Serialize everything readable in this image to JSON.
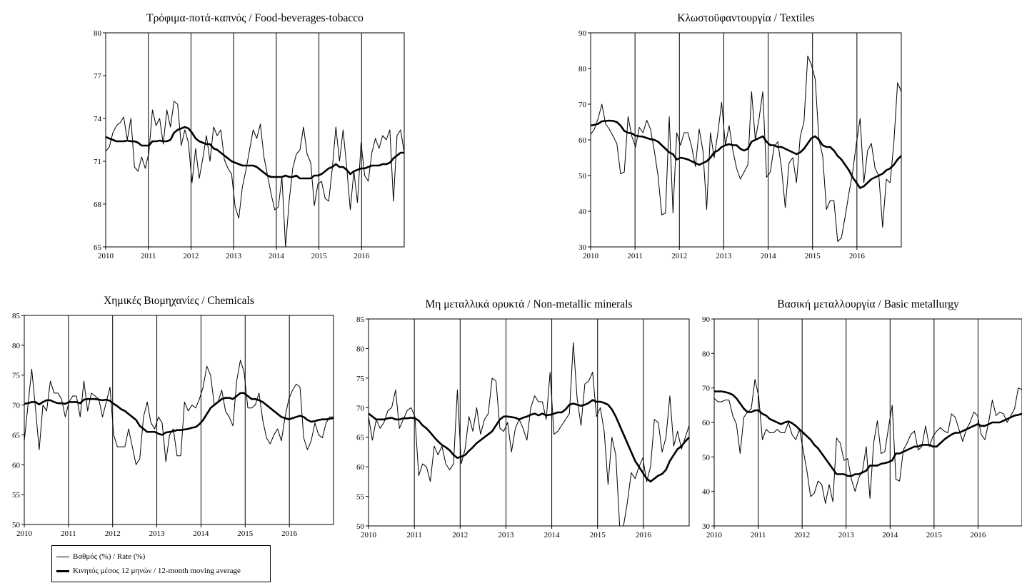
{
  "chart_data": [
    {
      "type": "line",
      "title": "Τρόφιμα-ποτά-καπνός / Food-beverages-tobacco",
      "ylim": [
        65,
        80
      ],
      "yticks": [
        65,
        68,
        71,
        74,
        77,
        80
      ],
      "xlim": [
        2010,
        2017
      ],
      "xticks": [
        2010,
        2011,
        2012,
        2013,
        2014,
        2015,
        2016
      ],
      "series": [
        {
          "name": "Βαθμός (%) / Rate (%)",
          "values": [
            71.7,
            72.0,
            73.0,
            73.5,
            73.7,
            74.1,
            72.5,
            74.0,
            70.6,
            70.3,
            71.3,
            70.5,
            71.6,
            74.6,
            73.5,
            74.0,
            72.2,
            74.6,
            73.4,
            75.2,
            75.0,
            72.1,
            73.2,
            72.3,
            69.5,
            71.9,
            69.8,
            71.2,
            72.8,
            71.0,
            73.4,
            72.8,
            73.2,
            71.1,
            70.5,
            70.1,
            67.8,
            67.0,
            69.2,
            70.4,
            71.8,
            73.2,
            72.6,
            73.6,
            71.3,
            70.0,
            68.7,
            67.6,
            67.8,
            69.9,
            65.0,
            68.2,
            70.5,
            71.5,
            71.8,
            73.4,
            71.5,
            70.9,
            67.9,
            69.4,
            69.6,
            68.4,
            68.2,
            70.5,
            73.4,
            71.0,
            73.2,
            70.6,
            67.6,
            70.3,
            68.1,
            72.3,
            70.0,
            69.6,
            71.6,
            72.6,
            71.9,
            72.8,
            72.5,
            73.2,
            68.2,
            72.8,
            73.2,
            71.6
          ]
        },
        {
          "name": "Κινητός μέσος 12 μηνών / 12-month moving average",
          "values": [
            72.7,
            72.6,
            72.5,
            72.4,
            72.4,
            72.4,
            72.45,
            72.4,
            72.4,
            72.3,
            72.1,
            72.1,
            72.1,
            72.4,
            72.4,
            72.45,
            72.4,
            72.4,
            72.5,
            73.0,
            73.2,
            73.3,
            73.4,
            73.3,
            73.0,
            72.6,
            72.4,
            72.3,
            72.2,
            72.2,
            71.9,
            71.8,
            71.6,
            71.4,
            71.2,
            71.0,
            70.9,
            70.8,
            70.7,
            70.7,
            70.7,
            70.7,
            70.6,
            70.4,
            70.2,
            70.0,
            69.9,
            69.9,
            69.9,
            69.9,
            70.0,
            69.9,
            69.9,
            70.0,
            69.8,
            69.8,
            69.8,
            69.8,
            70.0,
            70.0,
            70.1,
            70.3,
            70.5,
            70.6,
            70.8,
            70.6,
            70.6,
            70.4,
            70.1,
            70.3,
            70.4,
            70.5,
            70.5,
            70.6,
            70.7,
            70.7,
            70.7,
            70.8,
            70.8,
            70.9,
            71.2,
            71.4,
            71.6,
            71.6
          ]
        }
      ]
    },
    {
      "type": "line",
      "title": "Κλωστοϋφαντουργία / Textiles",
      "ylim": [
        30,
        90
      ],
      "yticks": [
        30,
        40,
        50,
        60,
        70,
        80,
        90
      ],
      "xlim": [
        2010,
        2017
      ],
      "xticks": [
        2010,
        2011,
        2012,
        2013,
        2014,
        2015,
        2016
      ],
      "series": [
        {
          "name": "Βαθμός (%) / Rate (%)",
          "values": [
            61.5,
            63.0,
            66.0,
            70.0,
            64.5,
            63.0,
            61.0,
            59.0,
            50.5,
            51.0,
            66.5,
            61.0,
            58.0,
            63.5,
            62.0,
            65.5,
            63.0,
            57.0,
            50.0,
            39.0,
            39.5,
            66.5,
            39.5,
            62.0,
            58.5,
            62.0,
            62.0,
            58.0,
            52.5,
            63.0,
            57.0,
            40.5,
            62.0,
            55.0,
            62.0,
            70.5,
            58.5,
            64.0,
            57.0,
            52.0,
            49.0,
            51.0,
            53.0,
            73.5,
            60.0,
            66.0,
            73.5,
            49.5,
            51.0,
            58.0,
            59.5,
            52.0,
            41.0,
            53.5,
            55.0,
            48.0,
            61.0,
            65.0,
            83.5,
            81.0,
            77.0,
            60.0,
            55.5,
            40.5,
            43.0,
            43.0,
            31.5,
            32.5,
            38.5,
            45.0,
            51.0,
            59.0,
            66.0,
            48.0,
            57.0,
            59.0,
            52.0,
            50.0,
            35.5,
            49.0,
            48.0,
            59.0,
            76.0,
            73.5
          ]
        },
        {
          "name": "Κινητός μέσος 12 μηνών / 12-month moving average",
          "values": [
            64.0,
            64.2,
            64.5,
            65.2,
            65.3,
            65.4,
            65.3,
            65.0,
            64.0,
            62.5,
            62.0,
            61.8,
            61.2,
            61.0,
            60.9,
            60.5,
            60.2,
            60.0,
            59.5,
            58.5,
            57.5,
            56.5,
            56.0,
            54.5,
            55.0,
            54.8,
            54.5,
            54.0,
            53.5,
            53.0,
            53.5,
            54.0,
            55.0,
            56.5,
            57.0,
            58.0,
            58.5,
            58.8,
            58.5,
            58.5,
            57.5,
            57.0,
            57.5,
            59.5,
            60.0,
            60.5,
            61.0,
            59.5,
            58.5,
            58.5,
            58.0,
            58.0,
            57.5,
            57.0,
            56.5,
            56.0,
            56.5,
            57.5,
            59.0,
            60.5,
            61.0,
            60.0,
            58.5,
            58.0,
            58.0,
            57.0,
            55.5,
            54.5,
            53.0,
            51.5,
            49.5,
            48.0,
            46.5,
            47.0,
            48.0,
            49.0,
            49.5,
            50.0,
            50.5,
            51.5,
            52.0,
            53.0,
            54.5,
            55.5
          ]
        }
      ]
    },
    {
      "type": "line",
      "title": "Χημικές Βιομηχανίες / Chemicals",
      "ylim": [
        50,
        85
      ],
      "yticks": [
        50,
        55,
        60,
        65,
        70,
        75,
        80,
        85
      ],
      "xlim": [
        2010,
        2017
      ],
      "xticks": [
        2010,
        2011,
        2012,
        2013,
        2014,
        2015,
        2016
      ],
      "series": [
        {
          "name": "Βαθμός (%) / Rate (%)",
          "values": [
            64.0,
            70.0,
            76.0,
            69.5,
            62.5,
            70.0,
            69.0,
            74.0,
            72.0,
            72.0,
            71.0,
            68.0,
            70.5,
            71.5,
            71.5,
            68.0,
            74.0,
            69.0,
            72.0,
            71.5,
            71.0,
            68.0,
            70.5,
            73.0,
            65.0,
            63.0,
            63.0,
            63.0,
            66.0,
            63.0,
            60.0,
            61.0,
            68.0,
            70.5,
            67.0,
            66.0,
            68.0,
            67.0,
            60.5,
            65.0,
            66.0,
            61.5,
            61.5,
            70.5,
            69.0,
            70.0,
            69.5,
            71.0,
            73.0,
            76.5,
            75.0,
            70.0,
            70.5,
            72.5,
            69.0,
            68.0,
            66.5,
            74.0,
            77.5,
            75.5,
            69.5,
            69.5,
            70.0,
            72.0,
            67.5,
            64.5,
            63.5,
            65.0,
            66.0,
            64.0,
            68.0,
            71.0,
            72.5,
            73.5,
            73.0,
            64.5,
            62.5,
            64.0,
            67.0,
            65.0,
            64.5,
            67.0,
            68.0,
            68.0
          ]
        },
        {
          "name": "Κινητός μέσος 12 μηνών / 12-month moving average",
          "values": [
            70.2,
            70.3,
            70.5,
            70.5,
            70.1,
            70.5,
            70.8,
            70.8,
            70.5,
            70.3,
            70.3,
            70.2,
            70.5,
            70.5,
            70.5,
            70.3,
            70.9,
            71.0,
            71.0,
            71.0,
            70.9,
            70.8,
            70.9,
            70.7,
            70.2,
            69.8,
            69.3,
            69.0,
            68.5,
            68.0,
            67.5,
            66.5,
            66.0,
            65.5,
            65.5,
            65.5,
            65.2,
            65.0,
            65.4,
            65.5,
            65.6,
            65.8,
            65.8,
            65.9,
            66.0,
            66.2,
            66.3,
            66.8,
            67.5,
            68.5,
            69.5,
            70.0,
            70.5,
            71.0,
            71.2,
            71.2,
            71.0,
            71.5,
            72.0,
            72.0,
            71.5,
            71.0,
            71.0,
            70.8,
            70.5,
            70.0,
            69.5,
            69.0,
            68.5,
            68.0,
            67.8,
            67.6,
            67.8,
            68.0,
            68.2,
            68.0,
            67.5,
            67.2,
            67.3,
            67.5,
            67.6,
            67.6,
            67.7,
            67.8
          ]
        }
      ]
    },
    {
      "type": "line",
      "title": "Μη μεταλλικά ορυκτά / Non-metallic minerals",
      "ylim": [
        50,
        85
      ],
      "yticks": [
        50,
        55,
        60,
        65,
        70,
        75,
        80,
        85
      ],
      "xlim": [
        2010,
        2017
      ],
      "xticks": [
        2010,
        2011,
        2012,
        2013,
        2014,
        2015,
        2016
      ],
      "series": [
        {
          "name": "Βαθμός (%) / Rate (%)",
          "values": [
            68.5,
            64.5,
            68.0,
            66.5,
            67.5,
            69.5,
            70.0,
            73.0,
            66.5,
            68.0,
            69.5,
            70.0,
            68.5,
            58.5,
            60.5,
            60.0,
            57.5,
            63.5,
            62.0,
            63.5,
            60.5,
            59.5,
            60.5,
            73.0,
            60.5,
            63.0,
            68.5,
            66.0,
            70.0,
            65.5,
            68.0,
            69.0,
            75.0,
            74.5,
            66.5,
            66.0,
            67.5,
            62.5,
            66.5,
            68.0,
            66.5,
            64.5,
            70.0,
            72.0,
            71.0,
            71.0,
            68.0,
            76.0,
            65.5,
            66.0,
            67.0,
            68.0,
            69.0,
            81.0,
            71.5,
            67.0,
            74.0,
            74.5,
            76.0,
            68.5,
            70.0,
            66.0,
            57.0,
            65.0,
            62.0,
            50.0,
            50.0,
            54.0,
            59.0,
            58.0,
            60.0,
            61.5,
            57.5,
            60.0,
            68.0,
            67.5,
            62.5,
            65.0,
            72.0,
            63.5,
            66.0,
            63.0,
            65.0,
            67.0
          ]
        },
        {
          "name": "Κινητός μέσος 12 μηνών / 12-month moving average",
          "values": [
            69.0,
            68.5,
            68.0,
            68.0,
            68.0,
            68.2,
            68.3,
            68.0,
            68.0,
            68.2,
            68.2,
            68.3,
            68.2,
            67.8,
            67.0,
            66.5,
            65.8,
            65.0,
            64.3,
            63.7,
            63.3,
            62.8,
            62.0,
            61.5,
            61.7,
            62.0,
            62.7,
            63.3,
            64.0,
            64.5,
            65.0,
            65.5,
            66.0,
            67.0,
            68.0,
            68.5,
            68.5,
            68.4,
            68.3,
            68.0,
            68.3,
            68.5,
            68.8,
            69.0,
            68.7,
            69.0,
            68.7,
            68.8,
            69.0,
            69.2,
            69.2,
            69.7,
            70.5,
            70.7,
            70.5,
            70.3,
            70.5,
            70.8,
            71.3,
            71.0,
            71.0,
            70.8,
            70.5,
            69.7,
            68.5,
            67.0,
            65.5,
            64.0,
            62.5,
            61.0,
            60.0,
            59.0,
            58.0,
            57.5,
            58.0,
            58.5,
            58.8,
            59.5,
            61.0,
            62.0,
            63.0,
            63.5,
            64.3,
            65.0
          ]
        }
      ]
    },
    {
      "type": "line",
      "title": "Βασική μεταλλουργία / Basic metallurgy",
      "ylim": [
        30,
        90
      ],
      "yticks": [
        30,
        40,
        50,
        60,
        70,
        80,
        90
      ],
      "xlim": [
        2010,
        2017
      ],
      "xticks": [
        2010,
        2011,
        2012,
        2013,
        2014,
        2015,
        2016
      ],
      "series": [
        {
          "name": "Βαθμός (%) / Rate (%)",
          "values": [
            67.0,
            66.0,
            66.0,
            66.5,
            66.5,
            62.0,
            59.5,
            51.0,
            61.5,
            63.0,
            64.0,
            72.5,
            67.5,
            55.0,
            58.0,
            57.0,
            57.0,
            58.0,
            57.0,
            57.0,
            60.0,
            56.5,
            55.0,
            58.0,
            52.0,
            46.0,
            38.5,
            39.5,
            43.0,
            42.0,
            36.5,
            42.0,
            37.0,
            55.5,
            54.0,
            49.0,
            49.5,
            43.5,
            40.0,
            44.0,
            46.0,
            53.0,
            38.0,
            54.0,
            60.5,
            51.0,
            51.5,
            58.5,
            65.0,
            43.5,
            43.0,
            52.0,
            54.0,
            56.5,
            57.5,
            52.0,
            53.0,
            59.0,
            53.0,
            56.0,
            57.5,
            58.5,
            57.5,
            57.0,
            62.5,
            61.5,
            58.0,
            54.5,
            58.0,
            60.0,
            63.0,
            62.0,
            56.5,
            55.0,
            60.0,
            66.5,
            62.0,
            63.0,
            62.5,
            60.0,
            62.0,
            64.0,
            70.0,
            69.5
          ]
        },
        {
          "name": "Κινητός μέσος 12 μηνών / 12-month moving average",
          "values": [
            69.0,
            69.0,
            69.0,
            68.8,
            68.5,
            68.0,
            67.0,
            65.5,
            64.0,
            63.0,
            63.0,
            63.5,
            63.5,
            62.5,
            62.0,
            61.0,
            60.5,
            60.0,
            59.5,
            60.0,
            60.3,
            59.8,
            59.0,
            58.0,
            57.0,
            56.0,
            55.0,
            53.5,
            52.5,
            51.0,
            49.5,
            48.0,
            46.5,
            45.0,
            45.0,
            45.0,
            44.5,
            44.5,
            45.0,
            45.0,
            45.5,
            46.0,
            47.5,
            47.5,
            47.5,
            48.0,
            48.2,
            48.5,
            49.0,
            51.0,
            51.0,
            51.5,
            52.0,
            52.5,
            53.0,
            53.0,
            53.5,
            53.5,
            53.5,
            53.0,
            53.0,
            54.0,
            55.0,
            55.8,
            56.5,
            57.0,
            57.0,
            57.5,
            58.0,
            58.5,
            59.0,
            59.5,
            59.0,
            59.0,
            59.5,
            60.0,
            60.0,
            60.0,
            60.5,
            61.0,
            61.5,
            62.0,
            62.2,
            62.5
          ]
        }
      ]
    }
  ],
  "legend": {
    "rate_label": "Βαθμός (%) / Rate (%)",
    "ma_label": "Κινητός μέσος 12 μηνών / 12-month moving average"
  }
}
